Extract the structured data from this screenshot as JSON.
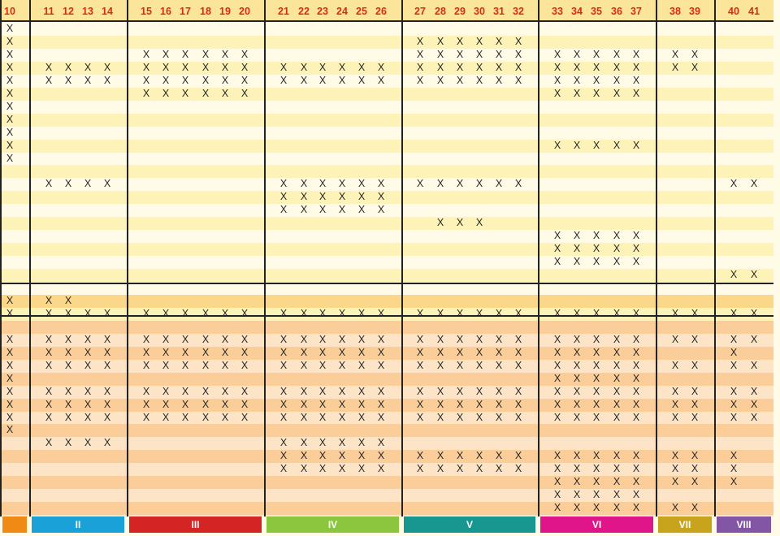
{
  "columns": [
    "10",
    "11",
    "12",
    "13",
    "14",
    "15",
    "16",
    "17",
    "18",
    "19",
    "20",
    "21",
    "22",
    "23",
    "24",
    "25",
    "26",
    "27",
    "28",
    "29",
    "30",
    "31",
    "32",
    "33",
    "34",
    "35",
    "36",
    "37",
    "38",
    "39",
    "40",
    "41"
  ],
  "mark": "X",
  "rows": [
    {
      "marks": "10"
    },
    {
      "marks": "10,27-32"
    },
    {
      "marks": "10,15-20,27-32,33-37,38-39"
    },
    {
      "marks": "10,11-14,15-20,21-26,27-32,33-37,38-39"
    },
    {
      "marks": "10,11-14,15-20,21-26,27-32,33-37"
    },
    {
      "marks": "10,15-20,33-37"
    },
    {
      "marks": "10"
    },
    {
      "marks": "10"
    },
    {
      "marks": "10"
    },
    {
      "marks": "10,33-37"
    },
    {
      "marks": "10"
    },
    {
      "marks": ""
    },
    {
      "marks": "11-14,21-26,27-32,40-41"
    },
    {
      "marks": "21-26"
    },
    {
      "marks": "21-26"
    },
    {
      "marks": "28-30"
    },
    {
      "marks": "33-37"
    },
    {
      "marks": "33-37"
    },
    {
      "marks": "33-37"
    },
    {
      "marks": "40-41"
    },
    {
      "marks": ""
    },
    {
      "marks": "10,11-12"
    },
    {
      "marks": "10,11-14,15-20,21-26,27-32,33-37,38-39,40-41"
    },
    {
      "marks": ""
    },
    {
      "marks": "10,11-14,15-20,21-26,27-32,33-37,38-39,40-41"
    },
    {
      "marks": "10,11-14,15-20,21-26,27-32,33-37,40"
    },
    {
      "marks": "10,11-14,15-20,21-26,27-32,33-37,38-39,40-41"
    },
    {
      "marks": "10,33-37"
    },
    {
      "marks": "10,11-14,15-20,21-26,27-32,33-37,38-39,40-41"
    },
    {
      "marks": "10,11-14,15-20,21-26,27-32,33-37,38-39,40-41"
    },
    {
      "marks": "10,11-14,15-20,21-26,27-32,33-37,38-39,40-41"
    },
    {
      "marks": "10"
    },
    {
      "marks": "11-14,21-26"
    },
    {
      "marks": "21-26,27-32,33-37,38-39,40"
    },
    {
      "marks": "21-26,27-32,33-37,38-39,40"
    },
    {
      "marks": "33-37,38-39,40"
    },
    {
      "marks": "33-37"
    },
    {
      "marks": "33-37,38-39"
    },
    {
      "marks": "40"
    }
  ],
  "groups": [
    {
      "label": "",
      "color": "#f08a14",
      "from": "10",
      "to": "10"
    },
    {
      "label": "II",
      "color": "#1aa1d8",
      "from": "11",
      "to": "14"
    },
    {
      "label": "III",
      "color": "#d42424",
      "from": "15",
      "to": "20"
    },
    {
      "label": "IV",
      "color": "#8cc63e",
      "from": "21",
      "to": "26"
    },
    {
      "label": "V",
      "color": "#17978f",
      "from": "27",
      "to": "32"
    },
    {
      "label": "VI",
      "color": "#e0158a",
      "from": "33",
      "to": "37"
    },
    {
      "label": "VII",
      "color": "#c8a41c",
      "from": "38",
      "to": "39"
    },
    {
      "label": "VIII",
      "color": "#8355a5",
      "from": "40",
      "to": "41"
    }
  ],
  "colors": {
    "yellow_light": "#fffbe6",
    "yellow_dark": "#fdf2b8",
    "header_band": "#fbe59a",
    "section_band": "#fbd78a",
    "orange_light": "#fde4c6",
    "orange_dark": "#fbcd99",
    "header_text": "#d62d12",
    "lines": "#222222"
  }
}
